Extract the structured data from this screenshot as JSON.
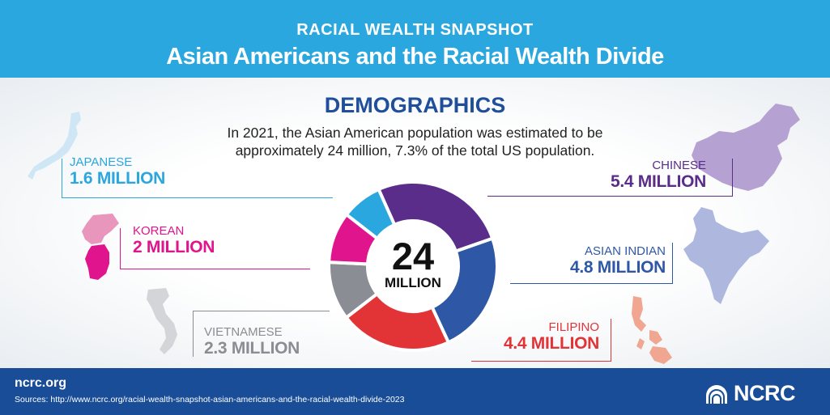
{
  "header": {
    "kicker": "RACIAL WEALTH SNAPSHOT",
    "title": "Asian Americans and the Racial Wealth Divide"
  },
  "section": {
    "heading": "DEMOGRAPHICS",
    "intro_line1": "In 2021, the Asian American population was estimated to be",
    "intro_line2": "approximately 24 million, 7.3% of the total US population."
  },
  "chart_data": {
    "type": "pie",
    "center_value": "24",
    "center_unit": "MILLION",
    "slices": [
      {
        "name": "CHINESE",
        "value_label": "5.4 MILLION",
        "value": 5.4,
        "color": "#5a2d8a"
      },
      {
        "name": "ASIAN INDIAN",
        "value_label": "4.8 MILLION",
        "value": 4.8,
        "color": "#2e58a6"
      },
      {
        "name": "FILIPINO",
        "value_label": "4.4 MILLION",
        "value": 4.4,
        "color": "#e23336"
      },
      {
        "name": "VIETNAMESE",
        "value_label": "2.3 MILLION",
        "value": 2.3,
        "color": "#8a8d93"
      },
      {
        "name": "KOREAN",
        "value_label": "2 MILLION",
        "value": 2.0,
        "color": "#e0148c"
      },
      {
        "name": "JAPANESE",
        "value_label": "1.6 MILLION",
        "value": 1.6,
        "color": "#2aa7de"
      }
    ]
  },
  "footer": {
    "site": "ncrc.org",
    "source": "Sources: http://www.ncrc.org/racial-wealth-snapshot-asian-americans-and-the-racial-wealth-divide-2023",
    "logo_text": "NCRC"
  }
}
